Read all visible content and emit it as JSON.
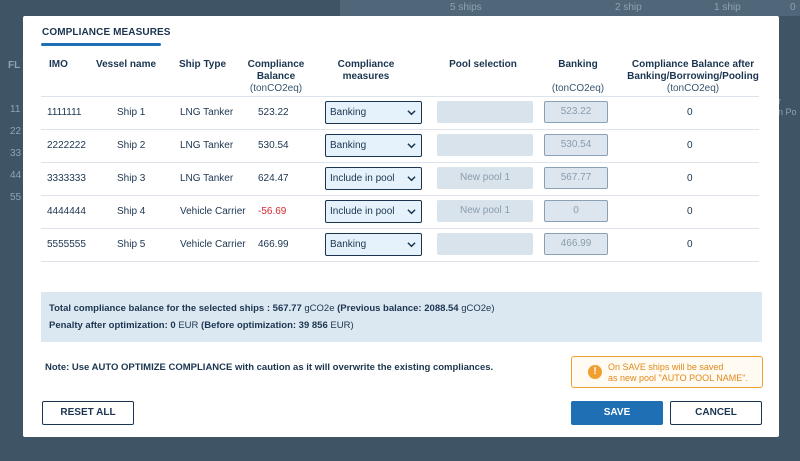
{
  "background": {
    "top_counts": [
      "5 ships",
      "2 ship",
      "1 ship",
      "0"
    ],
    "left_fragments": [
      "FL",
      "",
      "11",
      "22",
      "33",
      "44",
      "55"
    ],
    "right_fragments": [
      "r",
      "n Po"
    ]
  },
  "modal": {
    "tab_title": "COMPLIANCE MEASURES",
    "headers": {
      "imo": "IMO",
      "vessel_name": "Vessel name",
      "ship_type": "Ship Type",
      "balance": "Compliance Balance",
      "balance_unit": "(tonCO2eq)",
      "measures": "Compliance measures",
      "pool": "Pool selection",
      "banking": "Banking",
      "banking_unit": "(tonCO2eq)",
      "after": "Compliance Balance after Banking/Borrowing/Pooling",
      "after_unit": "(tonCO2eq)"
    },
    "rows": [
      {
        "imo": "1111111",
        "vessel": "Ship 1",
        "type": "LNG Tanker",
        "balance": "523.22",
        "measure": "Banking",
        "pool": "",
        "banking": "523.22",
        "after": "0"
      },
      {
        "imo": "2222222",
        "vessel": "Ship 2",
        "type": "LNG Tanker",
        "balance": "530.54",
        "measure": "Banking",
        "pool": "",
        "banking": "530.54",
        "after": "0"
      },
      {
        "imo": "3333333",
        "vessel": "Ship 3",
        "type": "LNG Tanker",
        "balance": "624.47",
        "measure": "Include in pool",
        "pool": "New pool 1",
        "banking": "567.77",
        "after": "0"
      },
      {
        "imo": "4444444",
        "vessel": "Ship 4",
        "type": "Vehicle Carrier",
        "balance": "-56.69",
        "measure": "Include in pool",
        "pool": "New pool 1",
        "banking": "0",
        "after": "0"
      },
      {
        "imo": "5555555",
        "vessel": "Ship 5",
        "type": "Vehicle Carrier",
        "balance": "466.99",
        "measure": "Banking",
        "pool": "",
        "banking": "466.99",
        "after": "0"
      }
    ],
    "summary": {
      "total_label": "Total compliance balance for the selected ships :",
      "total_value": "567.77",
      "total_unit": "gCO2e",
      "prev_label": "(Previous balance:",
      "prev_value": "2088.54",
      "prev_unit": "gCO2e)",
      "penalty_label": "Penalty after optimization:",
      "penalty_value": "0",
      "penalty_unit": "EUR",
      "before_label": "(Before optimization: 39 856",
      "before_unit": "EUR)"
    },
    "note": "Note: Use AUTO OPTIMIZE COMPLIANCE with caution as it will overwrite the existing compliances.",
    "warning": {
      "icon": "warning-icon",
      "line1": "On SAVE ships will be saved",
      "line2": "as new pool \"AUTO POOL NAME\"."
    },
    "buttons": {
      "reset": "RESET ALL",
      "save": "SAVE",
      "cancel": "CANCEL"
    }
  },
  "colors": {
    "accent": "#1f6fb5",
    "negative": "#d9272e",
    "warning": "#f0a030"
  }
}
